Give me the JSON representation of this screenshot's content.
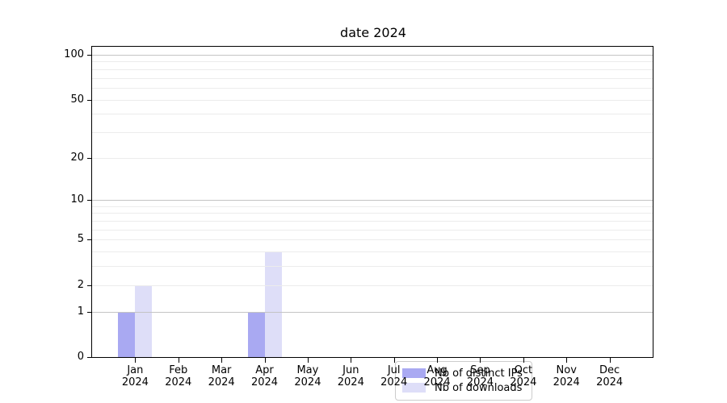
{
  "chart_data": {
    "type": "bar",
    "title": "date 2024",
    "yscale": "log1p",
    "ylim": [
      0,
      113
    ],
    "grid": "on",
    "legend_position": "lower center",
    "categories": [
      {
        "month": "Jan",
        "year": "2024"
      },
      {
        "month": "Feb",
        "year": "2024"
      },
      {
        "month": "Mar",
        "year": "2024"
      },
      {
        "month": "Apr",
        "year": "2024"
      },
      {
        "month": "May",
        "year": "2024"
      },
      {
        "month": "Jun",
        "year": "2024"
      },
      {
        "month": "Jul",
        "year": "2024"
      },
      {
        "month": "Aug",
        "year": "2024"
      },
      {
        "month": "Sep",
        "year": "2024"
      },
      {
        "month": "Oct",
        "year": "2024"
      },
      {
        "month": "Nov",
        "year": "2024"
      },
      {
        "month": "Dec",
        "year": "2024"
      }
    ],
    "series": [
      {
        "name": "Nb of distinct IPs",
        "color": "#a9a9f2",
        "values": [
          1,
          0,
          0,
          1,
          0,
          0,
          0,
          0,
          0,
          0,
          0,
          0
        ]
      },
      {
        "name": "Nb of downloads",
        "color": "#dedef8",
        "values": [
          2,
          0,
          0,
          4,
          0,
          0,
          0,
          0,
          0,
          0,
          0,
          0
        ]
      }
    ],
    "y_ticks": [
      {
        "value": 0,
        "label": "0"
      },
      {
        "value": 1,
        "label": "1"
      },
      {
        "value": 2,
        "label": "2"
      },
      {
        "value": 5,
        "label": "5"
      },
      {
        "value": 10,
        "label": "10"
      },
      {
        "value": 20,
        "label": "20"
      },
      {
        "value": 50,
        "label": "50"
      },
      {
        "value": 100,
        "label": "100"
      }
    ],
    "major_gridlines": [
      1,
      10,
      100
    ],
    "minor_gridlines": [
      2,
      3,
      4,
      5,
      6,
      7,
      8,
      9,
      20,
      30,
      40,
      50,
      60,
      70,
      80,
      90
    ],
    "colors": {
      "axis": "#000000",
      "major_grid": "#c4c4c4",
      "minor_grid": "#ececec",
      "legend_border": "#cccccc",
      "background": "#ffffff"
    }
  }
}
